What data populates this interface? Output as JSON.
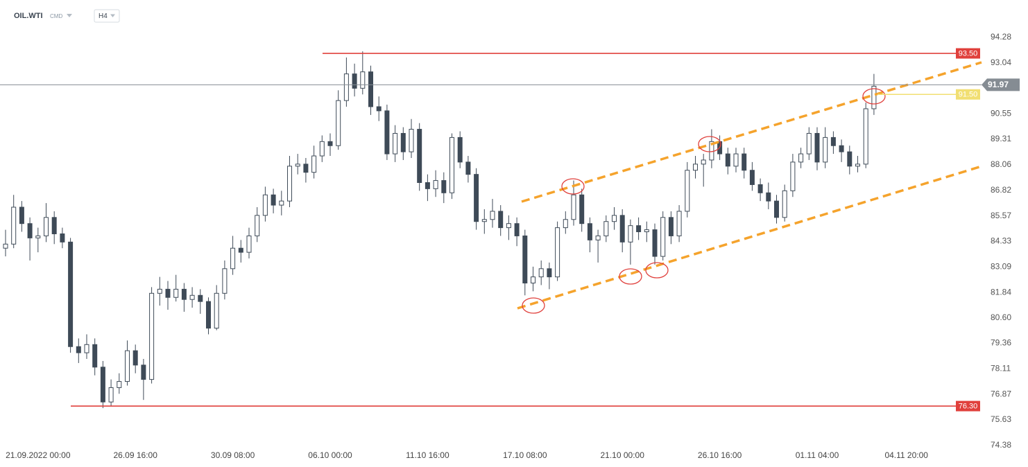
{
  "chart_data": {
    "type": "candlestick",
    "title": "OIL.WTI",
    "subtitle": "CMD",
    "timeframe": "H4",
    "categories": [
      null,
      null,
      null,
      null,
      "21.09.2022 00:00",
      null,
      null,
      null,
      null,
      null,
      null,
      null,
      null,
      null,
      null,
      null,
      "26.09 16:00",
      null,
      null,
      null,
      null,
      null,
      null,
      null,
      null,
      null,
      null,
      null,
      "30.09 08:00",
      null,
      null,
      null,
      null,
      null,
      null,
      null,
      null,
      null,
      null,
      null,
      "06.10 00:00",
      null,
      null,
      null,
      null,
      null,
      null,
      null,
      null,
      null,
      null,
      null,
      "11.10 16:00",
      null,
      null,
      null,
      null,
      null,
      null,
      null,
      null,
      null,
      null,
      null,
      "17.10 08:00",
      null,
      null,
      null,
      null,
      null,
      null,
      null,
      null,
      null,
      null,
      null,
      "21.10 00:00",
      null,
      null,
      null,
      null,
      null,
      null,
      null,
      null,
      null,
      null,
      null,
      "26.10 16:00",
      null,
      null,
      null,
      null,
      null,
      null,
      null,
      null,
      null,
      null,
      null,
      "01.11 04:00",
      null,
      null,
      null,
      null,
      null,
      null,
      null,
      null,
      null,
      null,
      "04.11 20:00"
    ],
    "candles": [
      [
        84.0,
        84.9,
        83.6,
        84.2
      ],
      [
        84.2,
        86.6,
        84.0,
        86.0
      ],
      [
        86.0,
        86.3,
        84.8,
        85.2
      ],
      [
        85.2,
        85.5,
        83.4,
        84.5
      ],
      [
        84.5,
        85.0,
        83.8,
        84.6
      ],
      [
        84.6,
        86.2,
        84.3,
        85.5
      ],
      [
        85.5,
        85.8,
        84.2,
        84.7
      ],
      [
        84.7,
        85.0,
        84.0,
        84.3
      ],
      [
        84.3,
        84.5,
        78.9,
        79.2
      ],
      [
        79.2,
        79.6,
        78.4,
        78.9
      ],
      [
        78.9,
        79.8,
        78.6,
        79.3
      ],
      [
        79.3,
        79.6,
        77.8,
        78.2
      ],
      [
        78.2,
        78.5,
        76.2,
        76.5
      ],
      [
        76.5,
        77.6,
        76.3,
        77.2
      ],
      [
        77.2,
        77.9,
        76.9,
        77.5
      ],
      [
        77.5,
        79.5,
        77.3,
        79.0
      ],
      [
        79.0,
        79.3,
        77.9,
        78.3
      ],
      [
        78.3,
        78.6,
        76.6,
        77.6
      ],
      [
        77.6,
        82.1,
        77.4,
        81.8
      ],
      [
        81.8,
        82.6,
        81.2,
        82.0
      ],
      [
        82.0,
        82.4,
        81.0,
        81.6
      ],
      [
        81.6,
        82.7,
        81.4,
        82.0
      ],
      [
        82.0,
        82.3,
        80.9,
        81.5
      ],
      [
        81.5,
        82.1,
        81.1,
        81.7
      ],
      [
        81.7,
        82.0,
        80.8,
        81.4
      ],
      [
        81.4,
        81.6,
        79.8,
        80.1
      ],
      [
        80.1,
        82.2,
        80.0,
        81.8
      ],
      [
        81.8,
        83.4,
        81.5,
        83.0
      ],
      [
        83.0,
        84.6,
        82.7,
        84.0
      ],
      [
        84.0,
        84.4,
        83.3,
        83.8
      ],
      [
        83.8,
        85.0,
        83.5,
        84.6
      ],
      [
        84.6,
        86.0,
        84.3,
        85.6
      ],
      [
        85.6,
        87.0,
        85.3,
        86.6
      ],
      [
        86.6,
        86.9,
        85.7,
        86.1
      ],
      [
        86.1,
        86.8,
        85.6,
        86.3
      ],
      [
        86.3,
        88.5,
        86.0,
        88.0
      ],
      [
        88.0,
        88.6,
        87.6,
        88.1
      ],
      [
        88.1,
        88.4,
        87.2,
        87.7
      ],
      [
        87.7,
        89.0,
        87.4,
        88.5
      ],
      [
        88.5,
        89.5,
        88.2,
        89.2
      ],
      [
        89.2,
        89.6,
        88.5,
        89.0
      ],
      [
        89.0,
        91.7,
        88.8,
        91.2
      ],
      [
        91.2,
        93.3,
        90.9,
        92.5
      ],
      [
        92.5,
        93.0,
        91.4,
        91.8
      ],
      [
        91.8,
        93.6,
        91.5,
        92.6
      ],
      [
        92.6,
        92.9,
        90.5,
        90.9
      ],
      [
        90.9,
        91.4,
        90.2,
        90.7
      ],
      [
        90.7,
        91.0,
        88.3,
        88.6
      ],
      [
        88.6,
        90.0,
        88.2,
        89.6
      ],
      [
        89.6,
        89.9,
        88.3,
        88.7
      ],
      [
        88.7,
        90.3,
        88.4,
        89.8
      ],
      [
        89.8,
        90.1,
        86.8,
        87.2
      ],
      [
        87.2,
        87.6,
        86.3,
        86.9
      ],
      [
        86.9,
        87.8,
        86.5,
        87.3
      ],
      [
        87.3,
        87.7,
        86.2,
        86.7
      ],
      [
        86.7,
        89.6,
        86.4,
        89.4
      ],
      [
        89.4,
        89.7,
        87.9,
        88.2
      ],
      [
        88.2,
        88.5,
        87.2,
        87.6
      ],
      [
        87.6,
        87.9,
        84.9,
        85.3
      ],
      [
        85.3,
        85.9,
        84.7,
        85.4
      ],
      [
        85.4,
        86.4,
        85.0,
        85.8
      ],
      [
        85.8,
        86.1,
        84.6,
        85.0
      ],
      [
        85.0,
        85.6,
        84.4,
        85.2
      ],
      [
        85.2,
        85.5,
        84.1,
        84.6
      ],
      [
        84.6,
        84.9,
        81.7,
        82.3
      ],
      [
        82.3,
        83.1,
        81.9,
        82.6
      ],
      [
        82.6,
        83.4,
        82.2,
        83.0
      ],
      [
        83.0,
        83.3,
        82.0,
        82.6
      ],
      [
        82.6,
        85.3,
        82.4,
        85.0
      ],
      [
        85.0,
        85.8,
        84.7,
        85.4
      ],
      [
        85.4,
        87.3,
        85.1,
        86.6
      ],
      [
        86.6,
        86.9,
        84.8,
        85.2
      ],
      [
        85.2,
        85.5,
        83.8,
        84.4
      ],
      [
        84.4,
        84.9,
        83.3,
        84.6
      ],
      [
        84.6,
        85.6,
        84.3,
        85.3
      ],
      [
        85.3,
        86.0,
        84.9,
        85.6
      ],
      [
        85.6,
        85.9,
        83.8,
        84.3
      ],
      [
        84.3,
        85.4,
        83.2,
        85.1
      ],
      [
        85.1,
        85.5,
        84.4,
        84.8
      ],
      [
        84.8,
        85.3,
        84.3,
        84.9
      ],
      [
        84.9,
        85.2,
        83.2,
        83.6
      ],
      [
        83.6,
        85.8,
        83.4,
        85.5
      ],
      [
        85.5,
        85.8,
        84.2,
        84.6
      ],
      [
        84.6,
        86.1,
        84.3,
        85.8
      ],
      [
        85.8,
        88.2,
        85.5,
        87.8
      ],
      [
        87.8,
        88.5,
        87.4,
        88.1
      ],
      [
        88.1,
        88.6,
        87.0,
        88.3
      ],
      [
        88.3,
        89.8,
        87.9,
        89.2
      ],
      [
        89.2,
        89.5,
        88.3,
        88.6
      ],
      [
        88.6,
        88.9,
        87.6,
        88.0
      ],
      [
        88.0,
        88.9,
        87.7,
        88.6
      ],
      [
        88.6,
        88.9,
        87.4,
        87.8
      ],
      [
        87.8,
        88.2,
        86.8,
        87.1
      ],
      [
        87.1,
        87.4,
        86.3,
        86.7
      ],
      [
        86.7,
        87.2,
        85.9,
        86.3
      ],
      [
        86.3,
        86.6,
        85.2,
        85.5
      ],
      [
        85.5,
        87.1,
        85.3,
        86.8
      ],
      [
        86.8,
        88.6,
        86.5,
        88.2
      ],
      [
        88.2,
        88.9,
        87.9,
        88.6
      ],
      [
        88.6,
        89.9,
        88.3,
        89.6
      ],
      [
        89.6,
        89.9,
        87.8,
        88.2
      ],
      [
        88.2,
        89.9,
        87.9,
        89.4
      ],
      [
        89.4,
        89.7,
        88.6,
        89.0
      ],
      [
        89.0,
        89.3,
        88.2,
        88.7
      ],
      [
        88.7,
        89.0,
        87.6,
        88.0
      ],
      [
        88.0,
        88.5,
        87.7,
        88.1
      ],
      [
        88.1,
        91.1,
        87.9,
        90.8
      ],
      [
        90.8,
        92.5,
        90.5,
        91.9
      ],
      null,
      null,
      null,
      null
    ],
    "up_color": "#ffffff",
    "down_color": "#3e4a57",
    "ylim": [
      74.14,
      95.09
    ],
    "yticks": [
      94.28,
      93.04,
      90.55,
      89.31,
      88.06,
      86.82,
      85.57,
      84.33,
      83.09,
      81.84,
      {
        "value": 80.6,
        "label": "80.60"
      },
      79.36,
      78.11,
      76.87,
      75.63,
      74.38
    ],
    "levels": [
      {
        "value": 93.5,
        "label": "93.50",
        "color": "#e0403c"
      },
      {
        "value": 76.3,
        "label": "76.30",
        "color": "#e0403c"
      },
      {
        "value": 91.5,
        "label": "91.50",
        "color": "#f1df72"
      },
      {
        "value": 91.97,
        "label": "91.97",
        "color": "#858c93"
      }
    ]
  }
}
